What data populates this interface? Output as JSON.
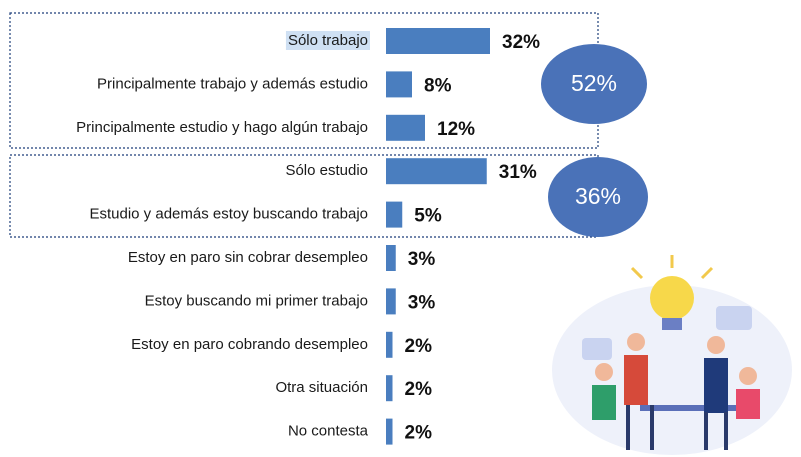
{
  "chart_data": {
    "type": "bar",
    "orientation": "horizontal",
    "categories": [
      "Sólo trabajo",
      "Principalmente trabajo y además estudio",
      "Principalmente estudio y hago algún trabajo",
      "Sólo estudio",
      "Estudio y además estoy buscando trabajo",
      "Estoy en paro sin cobrar desempleo",
      "Estoy buscando mi primer trabajo",
      "Estoy en paro cobrando desempleo",
      "Otra situación",
      "No contesta"
    ],
    "values": [
      32,
      8,
      12,
      31,
      5,
      3,
      3,
      2,
      2,
      2
    ],
    "value_labels": [
      "32%",
      "8%",
      "12%",
      "31%",
      "5%",
      "3%",
      "3%",
      "2%",
      "2%",
      "2%"
    ],
    "color": "#4a7ebf",
    "annotations": [
      "52%",
      "36%"
    ]
  }
}
